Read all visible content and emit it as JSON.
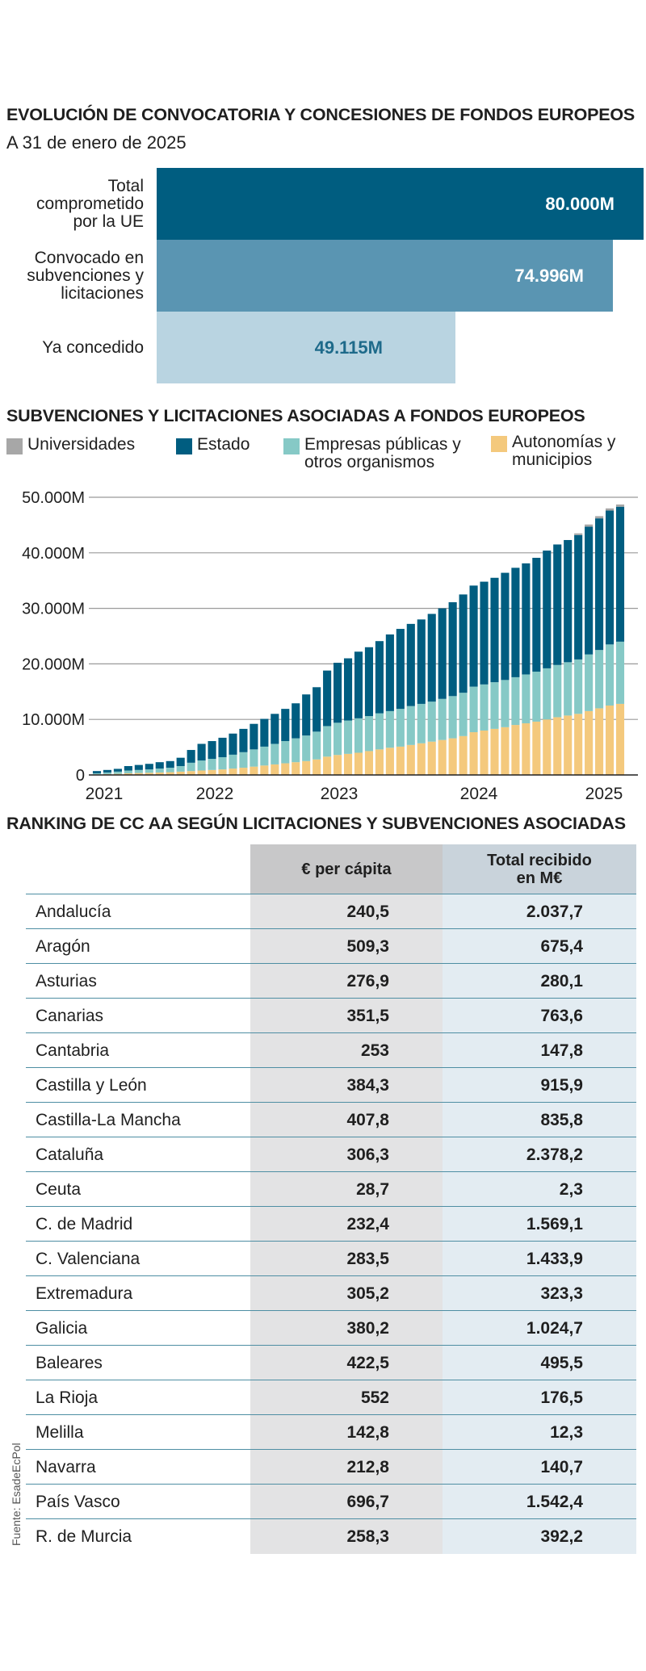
{
  "section1": {
    "title": "EVOLUCIÓN DE CONVOCATORIA Y CONCESIONES DE FONDOS EUROPEOS",
    "subtitle": "A 31 de enero de 2025",
    "bars": [
      {
        "label": "Total comprometido por la UE",
        "value": 80000,
        "value_label": "80.000M",
        "color": "#005d80",
        "text_color": "#ffffff"
      },
      {
        "label": "Convocado en subvenciones y licitaciones",
        "value": 74996,
        "value_label": "74.996M",
        "color": "#5a95b2",
        "text_color": "#ffffff"
      },
      {
        "label": "Ya concedido",
        "value": 49115,
        "value_label": "49.115M",
        "color": "#b9d4e1",
        "text_color": "#1e6a8a"
      }
    ]
  },
  "section2": {
    "title": "SUBVENCIONES Y LICITACIONES ASOCIADAS A FONDOS EUROPEOS",
    "legend": [
      {
        "label": "Universidades",
        "color": "#a7a7a7"
      },
      {
        "label": "Estado",
        "color": "#005d80"
      },
      {
        "label": "Empresas públicas y otros organismos",
        "color": "#86c9c6"
      },
      {
        "label": "Autonomías y municipios",
        "color": "#f4c97d"
      }
    ]
  },
  "section3": {
    "title": "RANKING DE CC AA SEGÚN LICITACIONES Y SUBVENCIONES ASOCIADAS",
    "col1": "€ per cápita",
    "col2": "Total recibido en M€",
    "rows": [
      {
        "name": "Andalucía",
        "per_capita": "240,5",
        "total": "2.037,7"
      },
      {
        "name": "Aragón",
        "per_capita": "509,3",
        "total": "675,4"
      },
      {
        "name": "Asturias",
        "per_capita": "276,9",
        "total": "280,1"
      },
      {
        "name": "Canarias",
        "per_capita": "351,5",
        "total": "763,6"
      },
      {
        "name": "Cantabria",
        "per_capita": "253",
        "total": "147,8"
      },
      {
        "name": "Castilla y León",
        "per_capita": "384,3",
        "total": "915,9"
      },
      {
        "name": "Castilla-La Mancha",
        "per_capita": "407,8",
        "total": "835,8"
      },
      {
        "name": "Cataluña",
        "per_capita": "306,3",
        "total": "2.378,2"
      },
      {
        "name": "Ceuta",
        "per_capita": "28,7",
        "total": "2,3"
      },
      {
        "name": "C. de Madrid",
        "per_capita": "232,4",
        "total": "1.569,1"
      },
      {
        "name": "C. Valenciana",
        "per_capita": "283,5",
        "total": "1.433,9"
      },
      {
        "name": "Extremadura",
        "per_capita": "305,2",
        "total": "323,3"
      },
      {
        "name": "Galicia",
        "per_capita": "380,2",
        "total": "1.024,7"
      },
      {
        "name": "Baleares",
        "per_capita": "422,5",
        "total": "495,5"
      },
      {
        "name": "La Rioja",
        "per_capita": "552",
        "total": "176,5"
      },
      {
        "name": "Melilla",
        "per_capita": "142,8",
        "total": "12,3"
      },
      {
        "name": "Navarra",
        "per_capita": "212,8",
        "total": "140,7"
      },
      {
        "name": "País Vasco",
        "per_capita": "696,7",
        "total": "1.542,4"
      },
      {
        "name": "R. de Murcia",
        "per_capita": "258,3",
        "total": "392,2"
      }
    ]
  },
  "source": "Fuente: EsadeEcPol",
  "chart_data": [
    {
      "type": "bar",
      "orientation": "horizontal",
      "title": "EVOLUCIÓN DE CONVOCATORIA Y CONCESIONES DE FONDOS EUROPEOS",
      "subtitle": "A 31 de enero de 2025",
      "categories": [
        "Total comprometido por la UE",
        "Convocado en subvenciones y licitaciones",
        "Ya concedido"
      ],
      "values": [
        80000,
        74996,
        49115
      ],
      "unit": "M"
    },
    {
      "type": "bar",
      "stacked": true,
      "title": "SUBVENCIONES Y LICITACIONES ASOCIADAS A FONDOS EUROPEOS",
      "ylim": [
        0,
        50000
      ],
      "yticks": [
        0,
        10000,
        20000,
        30000,
        40000,
        50000
      ],
      "ytick_labels": [
        "0",
        "10.000M",
        "20.000M",
        "30.000M",
        "40.000M",
        "50.000M"
      ],
      "xtick_labels": [
        "2021",
        "2022",
        "2023",
        "2024",
        "2025"
      ],
      "grid": true,
      "legend_position": "top",
      "series": [
        {
          "name": "Autonomías y municipios",
          "color": "#f4c97d",
          "values": [
            100,
            150,
            200,
            300,
            350,
            400,
            450,
            500,
            600,
            700,
            800,
            900,
            1000,
            1150,
            1300,
            1500,
            1700,
            1900,
            2100,
            2300,
            2500,
            2800,
            3300,
            3600,
            3800,
            4000,
            4300,
            4600,
            4900,
            5100,
            5400,
            5700,
            6000,
            6300,
            6600,
            7000,
            7700,
            8000,
            8300,
            8600,
            9000,
            9300,
            9600,
            10000,
            10400,
            10700,
            11000,
            11500,
            12000,
            12500,
            12800
          ]
        },
        {
          "name": "Empresas públicas y otros organismos",
          "color": "#86c9c6",
          "values": [
            200,
            300,
            400,
            500,
            550,
            600,
            700,
            800,
            1000,
            1500,
            1800,
            2000,
            2200,
            2500,
            2800,
            3100,
            3400,
            3700,
            4000,
            4300,
            4600,
            5000,
            5500,
            5800,
            6000,
            6200,
            6300,
            6500,
            6600,
            6800,
            7000,
            7100,
            7200,
            7400,
            7600,
            7800,
            8200,
            8300,
            8400,
            8500,
            8600,
            8800,
            9000,
            9200,
            9400,
            9600,
            9800,
            10200,
            10500,
            11000,
            11200
          ]
        },
        {
          "name": "Estado",
          "color": "#005d80",
          "values": [
            400,
            450,
            500,
            800,
            900,
            1000,
            1150,
            1200,
            1500,
            2300,
            3000,
            3200,
            3500,
            3800,
            4200,
            4600,
            5000,
            5400,
            5800,
            6300,
            7400,
            8000,
            10000,
            10800,
            11200,
            12000,
            12400,
            13000,
            13800,
            14400,
            14800,
            15200,
            15800,
            16300,
            16900,
            17700,
            18200,
            18500,
            18800,
            19300,
            19700,
            20000,
            20500,
            21200,
            21700,
            22000,
            22400,
            23000,
            23700,
            24100,
            24300
          ]
        },
        {
          "name": "Universidades",
          "color": "#a7a7a7",
          "values": [
            0,
            0,
            0,
            0,
            0,
            0,
            0,
            0,
            0,
            0,
            0,
            0,
            0,
            0,
            0,
            0,
            0,
            0,
            0,
            0,
            0,
            0,
            0,
            0,
            0,
            0,
            0,
            0,
            0,
            0,
            0,
            0,
            0,
            0,
            0,
            0,
            0,
            0,
            0,
            0,
            0,
            0,
            0,
            0,
            0,
            0,
            300,
            400,
            400,
            400,
            400
          ]
        }
      ]
    },
    {
      "type": "table",
      "title": "RANKING DE CC AA SEGÚN LICITACIONES Y SUBVENCIONES ASOCIADAS",
      "columns": [
        "",
        "€ per cápita",
        "Total recibido en M€"
      ],
      "rows": [
        [
          "Andalucía",
          240.5,
          2037.7
        ],
        [
          "Aragón",
          509.3,
          675.4
        ],
        [
          "Asturias",
          276.9,
          280.1
        ],
        [
          "Canarias",
          351.5,
          763.6
        ],
        [
          "Cantabria",
          253,
          147.8
        ],
        [
          "Castilla y León",
          384.3,
          915.9
        ],
        [
          "Castilla-La Mancha",
          407.8,
          835.8
        ],
        [
          "Cataluña",
          306.3,
          2378.2
        ],
        [
          "Ceuta",
          28.7,
          2.3
        ],
        [
          "C. de Madrid",
          232.4,
          1569.1
        ],
        [
          "C. Valenciana",
          283.5,
          1433.9
        ],
        [
          "Extremadura",
          305.2,
          323.3
        ],
        [
          "Galicia",
          380.2,
          1024.7
        ],
        [
          "Baleares",
          422.5,
          495.5
        ],
        [
          "La Rioja",
          552,
          176.5
        ],
        [
          "Melilla",
          142.8,
          12.3
        ],
        [
          "Navarra",
          212.8,
          140.7
        ],
        [
          "País Vasco",
          696.7,
          1542.4
        ],
        [
          "R. de Murcia",
          258.3,
          392.2
        ]
      ]
    }
  ]
}
